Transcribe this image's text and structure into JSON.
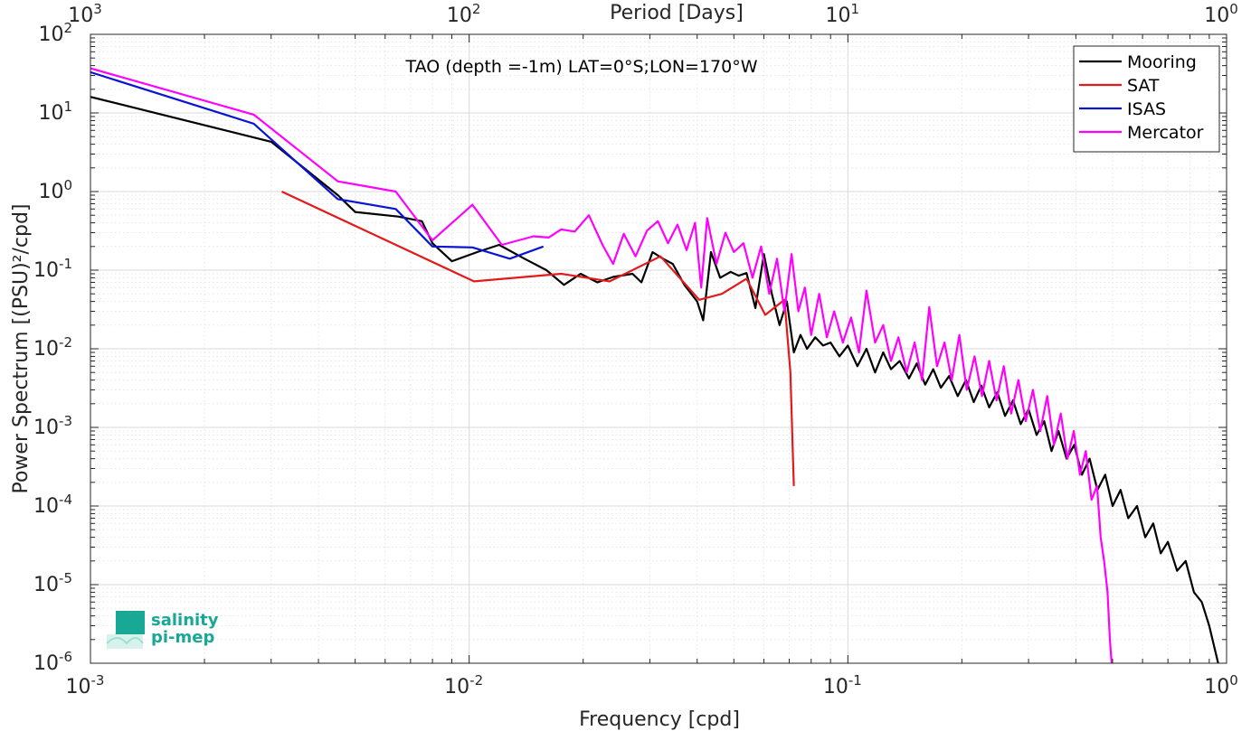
{
  "chart_data": {
    "type": "line",
    "xlabel": "Frequency [cpd]",
    "ylabel": "Power Spectrum [(PSU)²/cpd]",
    "top_axis_label": "Period [Days]",
    "annotation": "TAO (depth =-1m) LAT=0°S;LON=170°W",
    "xscale": "log",
    "yscale": "log",
    "xlim": [
      0.001,
      1
    ],
    "ylim": [
      1e-06,
      100
    ],
    "grid": true,
    "legend_position": "top-right",
    "x_ticks": [
      {
        "base": "10",
        "exp": "-3"
      },
      {
        "base": "10",
        "exp": "-2"
      },
      {
        "base": "10",
        "exp": "-1"
      },
      {
        "base": "10",
        "exp": "0"
      }
    ],
    "top_ticks": [
      {
        "base": "10",
        "exp": "3"
      },
      {
        "base": "10",
        "exp": "2"
      },
      {
        "base": "10",
        "exp": "1"
      },
      {
        "base": "10",
        "exp": "0"
      }
    ],
    "y_ticks": [
      {
        "base": "10",
        "exp": "-6"
      },
      {
        "base": "10",
        "exp": "-5"
      },
      {
        "base": "10",
        "exp": "-4"
      },
      {
        "base": "10",
        "exp": "-3"
      },
      {
        "base": "10",
        "exp": "-2"
      },
      {
        "base": "10",
        "exp": "-1"
      },
      {
        "base": "10",
        "exp": "0"
      },
      {
        "base": "10",
        "exp": "1"
      },
      {
        "base": "10",
        "exp": "2"
      }
    ],
    "series": [
      {
        "name": "Mooring",
        "color": "#000000",
        "points": [
          [
            0.001,
            16
          ],
          [
            0.003,
            4.3
          ],
          [
            0.0045,
            0.9
          ],
          [
            0.005,
            0.55
          ],
          [
            0.0065,
            0.48
          ],
          [
            0.0075,
            0.42
          ],
          [
            0.008,
            0.22
          ],
          [
            0.009,
            0.13
          ],
          [
            0.0105,
            0.17
          ],
          [
            0.012,
            0.21
          ],
          [
            0.014,
            0.14
          ],
          [
            0.016,
            0.1
          ],
          [
            0.0178,
            0.065
          ],
          [
            0.0197,
            0.09
          ],
          [
            0.0218,
            0.07
          ],
          [
            0.024,
            0.082
          ],
          [
            0.027,
            0.09
          ],
          [
            0.0285,
            0.07
          ],
          [
            0.0305,
            0.17
          ],
          [
            0.0325,
            0.14
          ],
          [
            0.0345,
            0.12
          ],
          [
            0.037,
            0.065
          ],
          [
            0.04,
            0.04
          ],
          [
            0.0415,
            0.023
          ],
          [
            0.0435,
            0.17
          ],
          [
            0.046,
            0.08
          ],
          [
            0.049,
            0.095
          ],
          [
            0.0515,
            0.085
          ],
          [
            0.054,
            0.092
          ],
          [
            0.057,
            0.033
          ],
          [
            0.06,
            0.16
          ],
          [
            0.063,
            0.05
          ],
          [
            0.066,
            0.02
          ],
          [
            0.069,
            0.04
          ],
          [
            0.072,
            0.009
          ],
          [
            0.075,
            0.015
          ],
          [
            0.078,
            0.01
          ],
          [
            0.082,
            0.014
          ],
          [
            0.086,
            0.011
          ],
          [
            0.09,
            0.012
          ],
          [
            0.095,
            0.008
          ],
          [
            0.1,
            0.011
          ],
          [
            0.106,
            0.006
          ],
          [
            0.112,
            0.01
          ],
          [
            0.118,
            0.005
          ],
          [
            0.124,
            0.009
          ],
          [
            0.13,
            0.0055
          ],
          [
            0.137,
            0.007
          ],
          [
            0.145,
            0.0042
          ],
          [
            0.152,
            0.0065
          ],
          [
            0.16,
            0.0035
          ],
          [
            0.168,
            0.0055
          ],
          [
            0.176,
            0.0032
          ],
          [
            0.185,
            0.0045
          ],
          [
            0.195,
            0.0025
          ],
          [
            0.205,
            0.004
          ],
          [
            0.215,
            0.0021
          ],
          [
            0.225,
            0.0034
          ],
          [
            0.236,
            0.0018
          ],
          [
            0.248,
            0.0028
          ],
          [
            0.26,
            0.0014
          ],
          [
            0.273,
            0.0022
          ],
          [
            0.286,
            0.0011
          ],
          [
            0.3,
            0.0017
          ],
          [
            0.315,
            0.0008
          ],
          [
            0.33,
            0.0012
          ],
          [
            0.345,
            0.0005
          ],
          [
            0.36,
            0.0009
          ],
          [
            0.378,
            0.0004
          ],
          [
            0.396,
            0.0006
          ],
          [
            0.415,
            0.00025
          ],
          [
            0.435,
            0.0004
          ],
          [
            0.456,
            0.00016
          ],
          [
            0.478,
            0.00025
          ],
          [
            0.5,
            0.0001
          ],
          [
            0.525,
            0.00016
          ],
          [
            0.55,
            7e-05
          ],
          [
            0.58,
            0.0001
          ],
          [
            0.61,
            4e-05
          ],
          [
            0.64,
            6e-05
          ],
          [
            0.67,
            2.5e-05
          ],
          [
            0.7,
            3.5e-05
          ],
          [
            0.74,
            1.5e-05
          ],
          [
            0.78,
            2e-05
          ],
          [
            0.82,
            8e-06
          ],
          [
            0.86,
            6e-06
          ],
          [
            0.9,
            3e-06
          ],
          [
            0.95,
            1e-06
          ]
        ]
      },
      {
        "name": "SAT",
        "color": "#e31a1c",
        "points": [
          [
            0.0032,
            1.0
          ],
          [
            0.0103,
            0.072
          ],
          [
            0.0175,
            0.09
          ],
          [
            0.0235,
            0.072
          ],
          [
            0.032,
            0.15
          ],
          [
            0.0405,
            0.042
          ],
          [
            0.0465,
            0.05
          ],
          [
            0.054,
            0.078
          ],
          [
            0.0605,
            0.027
          ],
          [
            0.068,
            0.042
          ],
          [
            0.0705,
            0.005
          ],
          [
            0.072,
            0.00018
          ]
        ]
      },
      {
        "name": "ISAS",
        "color": "#0a14d4",
        "points": [
          [
            0.001,
            33
          ],
          [
            0.0027,
            7.3
          ],
          [
            0.0045,
            0.8
          ],
          [
            0.0064,
            0.6
          ],
          [
            0.008,
            0.2
          ],
          [
            0.0102,
            0.195
          ],
          [
            0.0128,
            0.14
          ],
          [
            0.0157,
            0.2
          ]
        ]
      },
      {
        "name": "Mercator",
        "color": "#ff00ff",
        "points": [
          [
            0.001,
            37
          ],
          [
            0.0027,
            9.5
          ],
          [
            0.0045,
            1.35
          ],
          [
            0.0064,
            1.0
          ],
          [
            0.008,
            0.24
          ],
          [
            0.0102,
            0.68
          ],
          [
            0.0122,
            0.21
          ],
          [
            0.0148,
            0.27
          ],
          [
            0.0162,
            0.26
          ],
          [
            0.0175,
            0.33
          ],
          [
            0.019,
            0.31
          ],
          [
            0.0207,
            0.5
          ],
          [
            0.0225,
            0.21
          ],
          [
            0.024,
            0.12
          ],
          [
            0.0256,
            0.29
          ],
          [
            0.0275,
            0.15
          ],
          [
            0.0295,
            0.32
          ],
          [
            0.0315,
            0.42
          ],
          [
            0.0335,
            0.22
          ],
          [
            0.0355,
            0.38
          ],
          [
            0.0375,
            0.18
          ],
          [
            0.0395,
            0.4
          ],
          [
            0.041,
            0.06
          ],
          [
            0.0425,
            0.46
          ],
          [
            0.045,
            0.12
          ],
          [
            0.0475,
            0.3
          ],
          [
            0.05,
            0.17
          ],
          [
            0.053,
            0.22
          ],
          [
            0.056,
            0.08
          ],
          [
            0.059,
            0.2
          ],
          [
            0.062,
            0.05
          ],
          [
            0.065,
            0.14
          ],
          [
            0.068,
            0.03
          ],
          [
            0.071,
            0.16
          ],
          [
            0.074,
            0.03
          ],
          [
            0.077,
            0.06
          ],
          [
            0.08,
            0.015
          ],
          [
            0.084,
            0.05
          ],
          [
            0.088,
            0.014
          ],
          [
            0.092,
            0.03
          ],
          [
            0.097,
            0.012
          ],
          [
            0.102,
            0.025
          ],
          [
            0.107,
            0.009
          ],
          [
            0.112,
            0.055
          ],
          [
            0.118,
            0.012
          ],
          [
            0.124,
            0.02
          ],
          [
            0.13,
            0.007
          ],
          [
            0.136,
            0.014
          ],
          [
            0.143,
            0.005
          ],
          [
            0.15,
            0.012
          ],
          [
            0.157,
            0.004
          ],
          [
            0.164,
            0.034
          ],
          [
            0.172,
            0.006
          ],
          [
            0.18,
            0.012
          ],
          [
            0.188,
            0.004
          ],
          [
            0.197,
            0.015
          ],
          [
            0.206,
            0.003
          ],
          [
            0.216,
            0.008
          ],
          [
            0.226,
            0.0025
          ],
          [
            0.236,
            0.007
          ],
          [
            0.247,
            0.0022
          ],
          [
            0.258,
            0.006
          ],
          [
            0.27,
            0.0015
          ],
          [
            0.282,
            0.004
          ],
          [
            0.295,
            0.0012
          ],
          [
            0.308,
            0.003
          ],
          [
            0.322,
            0.0009
          ],
          [
            0.336,
            0.0025
          ],
          [
            0.35,
            0.0006
          ],
          [
            0.365,
            0.0015
          ],
          [
            0.38,
            0.0004
          ],
          [
            0.395,
            0.0009
          ],
          [
            0.41,
            0.00025
          ],
          [
            0.425,
            0.0005
          ],
          [
            0.44,
            0.00012
          ],
          [
            0.455,
            0.00018
          ],
          [
            0.465,
            4e-05
          ],
          [
            0.475,
            2e-05
          ],
          [
            0.485,
            8e-06
          ],
          [
            0.492,
            2e-06
          ],
          [
            0.497,
            1e-06
          ]
        ]
      }
    ]
  },
  "logo": {
    "line1": "salinity",
    "line2": "pi-mep",
    "color": "#1aa896"
  }
}
